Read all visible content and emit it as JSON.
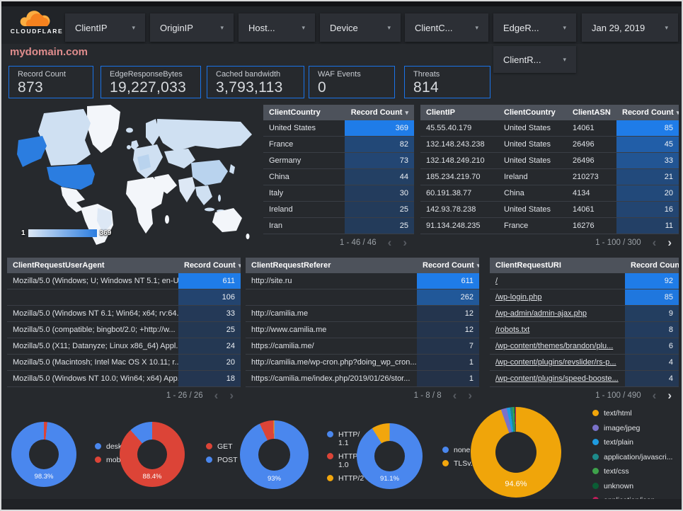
{
  "theme": {
    "accent": "#1a73e8",
    "heat_low": "#243247",
    "heat_high": "#1f7ce8"
  },
  "header": {
    "brand": "CLOUDFLARE",
    "site": "mydomain.com",
    "filters": [
      "ClientIP",
      "OriginIP",
      "Host...",
      "Device",
      "ClientC...",
      "EdgeR..."
    ],
    "date": "Jan 29, 2019",
    "filters_row2": [
      "ClientR..."
    ]
  },
  "scorecards": [
    {
      "label": "Record Count",
      "value": "873"
    },
    {
      "label": "EdgeResponseBytes",
      "value": "19,227,033"
    },
    {
      "label": "Cached bandwidth",
      "value": "3,793,113"
    },
    {
      "label": "WAF Events",
      "value": "0"
    },
    {
      "label": "Threats",
      "value": "814"
    }
  ],
  "map": {
    "legend_min": "1",
    "legend_max": "369",
    "colors": {
      "none": "#f3f6fa",
      "verylow": "#dde8f5",
      "low": "#cfe0f2",
      "mid": "#b9d3ee",
      "high": "#2b7de0"
    }
  },
  "tables": {
    "client_country": {
      "columns": [
        "ClientCountry",
        "Record Count"
      ],
      "heat_max": 369,
      "rows": [
        [
          "United States",
          369
        ],
        [
          "France",
          82
        ],
        [
          "Germany",
          73
        ],
        [
          "China",
          44
        ],
        [
          "Italy",
          30
        ],
        [
          "Ireland",
          25
        ],
        [
          "Iran",
          25
        ]
      ],
      "pagination": "1 - 46 / 46",
      "prev": false,
      "next": false
    },
    "client_ip": {
      "columns": [
        "ClientIP",
        "ClientCountry",
        "ClientASN",
        "Record Count"
      ],
      "heat_max": 85,
      "rows": [
        [
          "45.55.40.179",
          "United States",
          "14061",
          85
        ],
        [
          "132.148.243.238",
          "United States",
          "26496",
          45
        ],
        [
          "132.148.249.210",
          "United States",
          "26496",
          33
        ],
        [
          "185.234.219.70",
          "Ireland",
          "210273",
          21
        ],
        [
          "60.191.38.77",
          "China",
          "4134",
          20
        ],
        [
          "142.93.78.238",
          "United States",
          "14061",
          16
        ],
        [
          "91.134.248.235",
          "France",
          "16276",
          11
        ]
      ],
      "pagination": "1 - 100 / 300",
      "prev": false,
      "next": true
    },
    "user_agent": {
      "columns": [
        "ClientRequestUserAgent",
        "Record Count"
      ],
      "heat_max": 611,
      "rows": [
        [
          "Mozilla/5.0 (Windows; U; Windows NT 5.1; en-U...",
          611
        ],
        [
          "",
          106
        ],
        [
          "Mozilla/5.0 (Windows NT 6.1; Win64; x64; rv:64...",
          33
        ],
        [
          "Mozilla/5.0 (compatible; bingbot/2.0; +http://w...",
          25
        ],
        [
          "Mozilla/5.0 (X11; Datanyze; Linux x86_64) Appl...",
          24
        ],
        [
          "Mozilla/5.0 (Macintosh; Intel Mac OS X 10.11; r...",
          20
        ],
        [
          "Mozilla/5.0 (Windows NT 10.0; Win64; x64) App...",
          18
        ]
      ],
      "pagination": "1 - 26 / 26",
      "prev": false,
      "next": false
    },
    "referer": {
      "columns": [
        "ClientRequestReferer",
        "Record Count"
      ],
      "heat_max": 611,
      "rows": [
        [
          "http://site.ru",
          611
        ],
        [
          "",
          262
        ],
        [
          "http://camilia.me",
          12
        ],
        [
          "http://www.camilia.me",
          12
        ],
        [
          "https://camilia.me/",
          7
        ],
        [
          "http://camilia.me/wp-cron.php?doing_wp_cron...",
          1
        ],
        [
          "https://camilia.me/index.php/2019/01/26/stor...",
          1
        ]
      ],
      "pagination": "1 - 8 / 8",
      "prev": false,
      "next": false
    },
    "uri": {
      "columns": [
        "ClientRequestURI",
        "Record Count"
      ],
      "heat_max": 92,
      "links": true,
      "rows": [
        [
          "/",
          92
        ],
        [
          "/wp-login.php",
          85
        ],
        [
          "/wp-admin/admin-ajax.php",
          9
        ],
        [
          "/robots.txt",
          8
        ],
        [
          "/wp-content/themes/brandon/plu...",
          6
        ],
        [
          "/wp-content/plugins/revslider/rs-p...",
          4
        ],
        [
          "/wp-content/plugins/speed-booste...",
          4
        ]
      ],
      "pagination": "1 - 100 / 490",
      "prev": false,
      "next": true
    }
  },
  "donuts": [
    {
      "id": "device-type",
      "percent_label": "98.3%",
      "slices": [
        {
          "label": "mobile",
          "value": 1.7,
          "color": "#dc4437"
        },
        {
          "label": "deskt...",
          "value": 98.3,
          "color": "#4a87ee"
        }
      ],
      "legend": [
        {
          "label": "deskt...",
          "color": "#4a87ee"
        },
        {
          "label": "mobile",
          "color": "#dc4437"
        }
      ]
    },
    {
      "id": "request-method",
      "percent_label": "88.4%",
      "slices": [
        {
          "label": "GET",
          "value": 88.4,
          "color": "#dc4437"
        },
        {
          "label": "POST",
          "value": 11.6,
          "color": "#4a87ee"
        }
      ],
      "legend": [
        {
          "label": "GET",
          "color": "#dc4437"
        },
        {
          "label": "POST",
          "color": "#4a87ee"
        }
      ]
    },
    {
      "id": "http-version",
      "percent_label": "93%",
      "slices": [
        {
          "label": "HTTP/1.1",
          "value": 93,
          "color": "#4a87ee"
        },
        {
          "label": "HTTP/1.0",
          "value": 6.6,
          "color": "#dc4437"
        },
        {
          "label": "HTTP/2",
          "value": 0.4,
          "color": "#f2a60d"
        }
      ],
      "legend": [
        {
          "label": "HTTP/\n1.1",
          "color": "#4a87ee"
        },
        {
          "label": "HTTP/\n1.0",
          "color": "#dc4437"
        },
        {
          "label": "HTTP/2",
          "color": "#f2a60d"
        }
      ]
    },
    {
      "id": "tls-version",
      "percent_label": "91.1%",
      "slices": [
        {
          "label": "none",
          "value": 91.1,
          "color": "#4a87ee"
        },
        {
          "label": "TLSv...",
          "value": 8.9,
          "color": "#f2a60d"
        }
      ],
      "legend": [
        {
          "label": "none",
          "color": "#4a87ee"
        },
        {
          "label": "TLSv...",
          "color": "#f2a60d"
        }
      ]
    },
    {
      "id": "content-type",
      "percent_label": "94.6%",
      "sort_arrows": true,
      "slices": [
        {
          "label": "text/html",
          "value": 94.6,
          "color": "#f0a50a"
        },
        {
          "label": "image/jpeg",
          "value": 2.1,
          "color": "#7a72c9"
        },
        {
          "label": "text/plain",
          "value": 1.2,
          "color": "#1e9be0"
        },
        {
          "label": "application/javascri...",
          "value": 0.9,
          "color": "#1d8a8a"
        },
        {
          "label": "text/css",
          "value": 0.55,
          "color": "#3ea24b"
        },
        {
          "label": "unknown",
          "value": 0.35,
          "color": "#0b5d35"
        },
        {
          "label": "application/json",
          "value": 0.3,
          "color": "#c21e5c"
        }
      ],
      "legend": [
        {
          "label": "text/html",
          "color": "#f0a50a"
        },
        {
          "label": "image/jpeg",
          "color": "#7a72c9"
        },
        {
          "label": "text/plain",
          "color": "#1e9be0"
        },
        {
          "label": "application/javascri...",
          "color": "#1d8a8a"
        },
        {
          "label": "text/css",
          "color": "#3ea24b"
        },
        {
          "label": "unknown",
          "color": "#0b5d35"
        },
        {
          "label": "application/json",
          "color": "#c21e5c"
        }
      ]
    }
  ]
}
